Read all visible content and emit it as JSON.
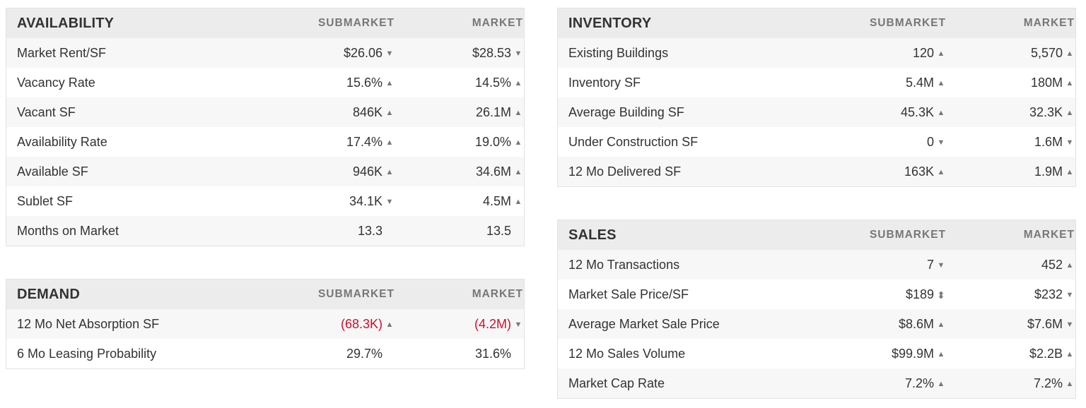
{
  "colors": {
    "header_bg": "#ececec",
    "odd_row_bg": "#f7f7f7",
    "negative_text": "#c8102e",
    "muted_text": "#777777"
  },
  "availability": {
    "title": "AVAILABILITY",
    "col1": "SUBMARKET",
    "col2": "MARKET",
    "rows": [
      {
        "label": "Market Rent/SF",
        "sub": "$26.06",
        "sub_trend": "down",
        "mkt": "$28.53",
        "mkt_trend": "down"
      },
      {
        "label": "Vacancy Rate",
        "sub": "15.6%",
        "sub_trend": "up",
        "mkt": "14.5%",
        "mkt_trend": "up"
      },
      {
        "label": "Vacant SF",
        "sub": "846K",
        "sub_trend": "up",
        "mkt": "26.1M",
        "mkt_trend": "up"
      },
      {
        "label": "Availability Rate",
        "sub": "17.4%",
        "sub_trend": "up",
        "mkt": "19.0%",
        "mkt_trend": "up"
      },
      {
        "label": "Available SF",
        "sub": "946K",
        "sub_trend": "up",
        "mkt": "34.6M",
        "mkt_trend": "up"
      },
      {
        "label": "Sublet SF",
        "sub": "34.1K",
        "sub_trend": "down",
        "mkt": "4.5M",
        "mkt_trend": "up"
      },
      {
        "label": "Months on Market",
        "sub": "13.3",
        "sub_trend": "none",
        "mkt": "13.5",
        "mkt_trend": "none"
      }
    ]
  },
  "demand": {
    "title": "DEMAND",
    "col1": "SUBMARKET",
    "col2": "MARKET",
    "rows": [
      {
        "label": "12 Mo Net Absorption SF",
        "sub": "(68.3K)",
        "sub_trend": "up",
        "sub_negative": true,
        "mkt": "(4.2M)",
        "mkt_trend": "down",
        "mkt_negative": true
      },
      {
        "label": "6 Mo Leasing Probability",
        "sub": "29.7%",
        "sub_trend": "none",
        "mkt": "31.6%",
        "mkt_trend": "none"
      }
    ]
  },
  "inventory": {
    "title": "INVENTORY",
    "col1": "SUBMARKET",
    "col2": "MARKET",
    "rows": [
      {
        "label": "Existing Buildings",
        "sub": "120",
        "sub_trend": "up",
        "mkt": "5,570",
        "mkt_trend": "up"
      },
      {
        "label": "Inventory SF",
        "sub": "5.4M",
        "sub_trend": "up",
        "mkt": "180M",
        "mkt_trend": "up"
      },
      {
        "label": "Average Building SF",
        "sub": "45.3K",
        "sub_trend": "up",
        "mkt": "32.3K",
        "mkt_trend": "up"
      },
      {
        "label": "Under Construction SF",
        "sub": "0",
        "sub_trend": "down",
        "mkt": "1.6M",
        "mkt_trend": "down"
      },
      {
        "label": "12 Mo Delivered SF",
        "sub": "163K",
        "sub_trend": "up",
        "mkt": "1.9M",
        "mkt_trend": "up"
      }
    ]
  },
  "sales": {
    "title": "SALES",
    "col1": "SUBMARKET",
    "col2": "MARKET",
    "rows": [
      {
        "label": "12 Mo Transactions",
        "sub": "7",
        "sub_trend": "down",
        "mkt": "452",
        "mkt_trend": "up"
      },
      {
        "label": "Market Sale Price/SF",
        "sub": "$189",
        "sub_trend": "updown",
        "mkt": "$232",
        "mkt_trend": "down"
      },
      {
        "label": "Average Market Sale Price",
        "sub": "$8.6M",
        "sub_trend": "up",
        "mkt": "$7.6M",
        "mkt_trend": "down"
      },
      {
        "label": "12 Mo Sales Volume",
        "sub": "$99.9M",
        "sub_trend": "up",
        "mkt": "$2.2B",
        "mkt_trend": "up"
      },
      {
        "label": "Market Cap Rate",
        "sub": "7.2%",
        "sub_trend": "up",
        "mkt": "7.2%",
        "mkt_trend": "up"
      }
    ]
  }
}
